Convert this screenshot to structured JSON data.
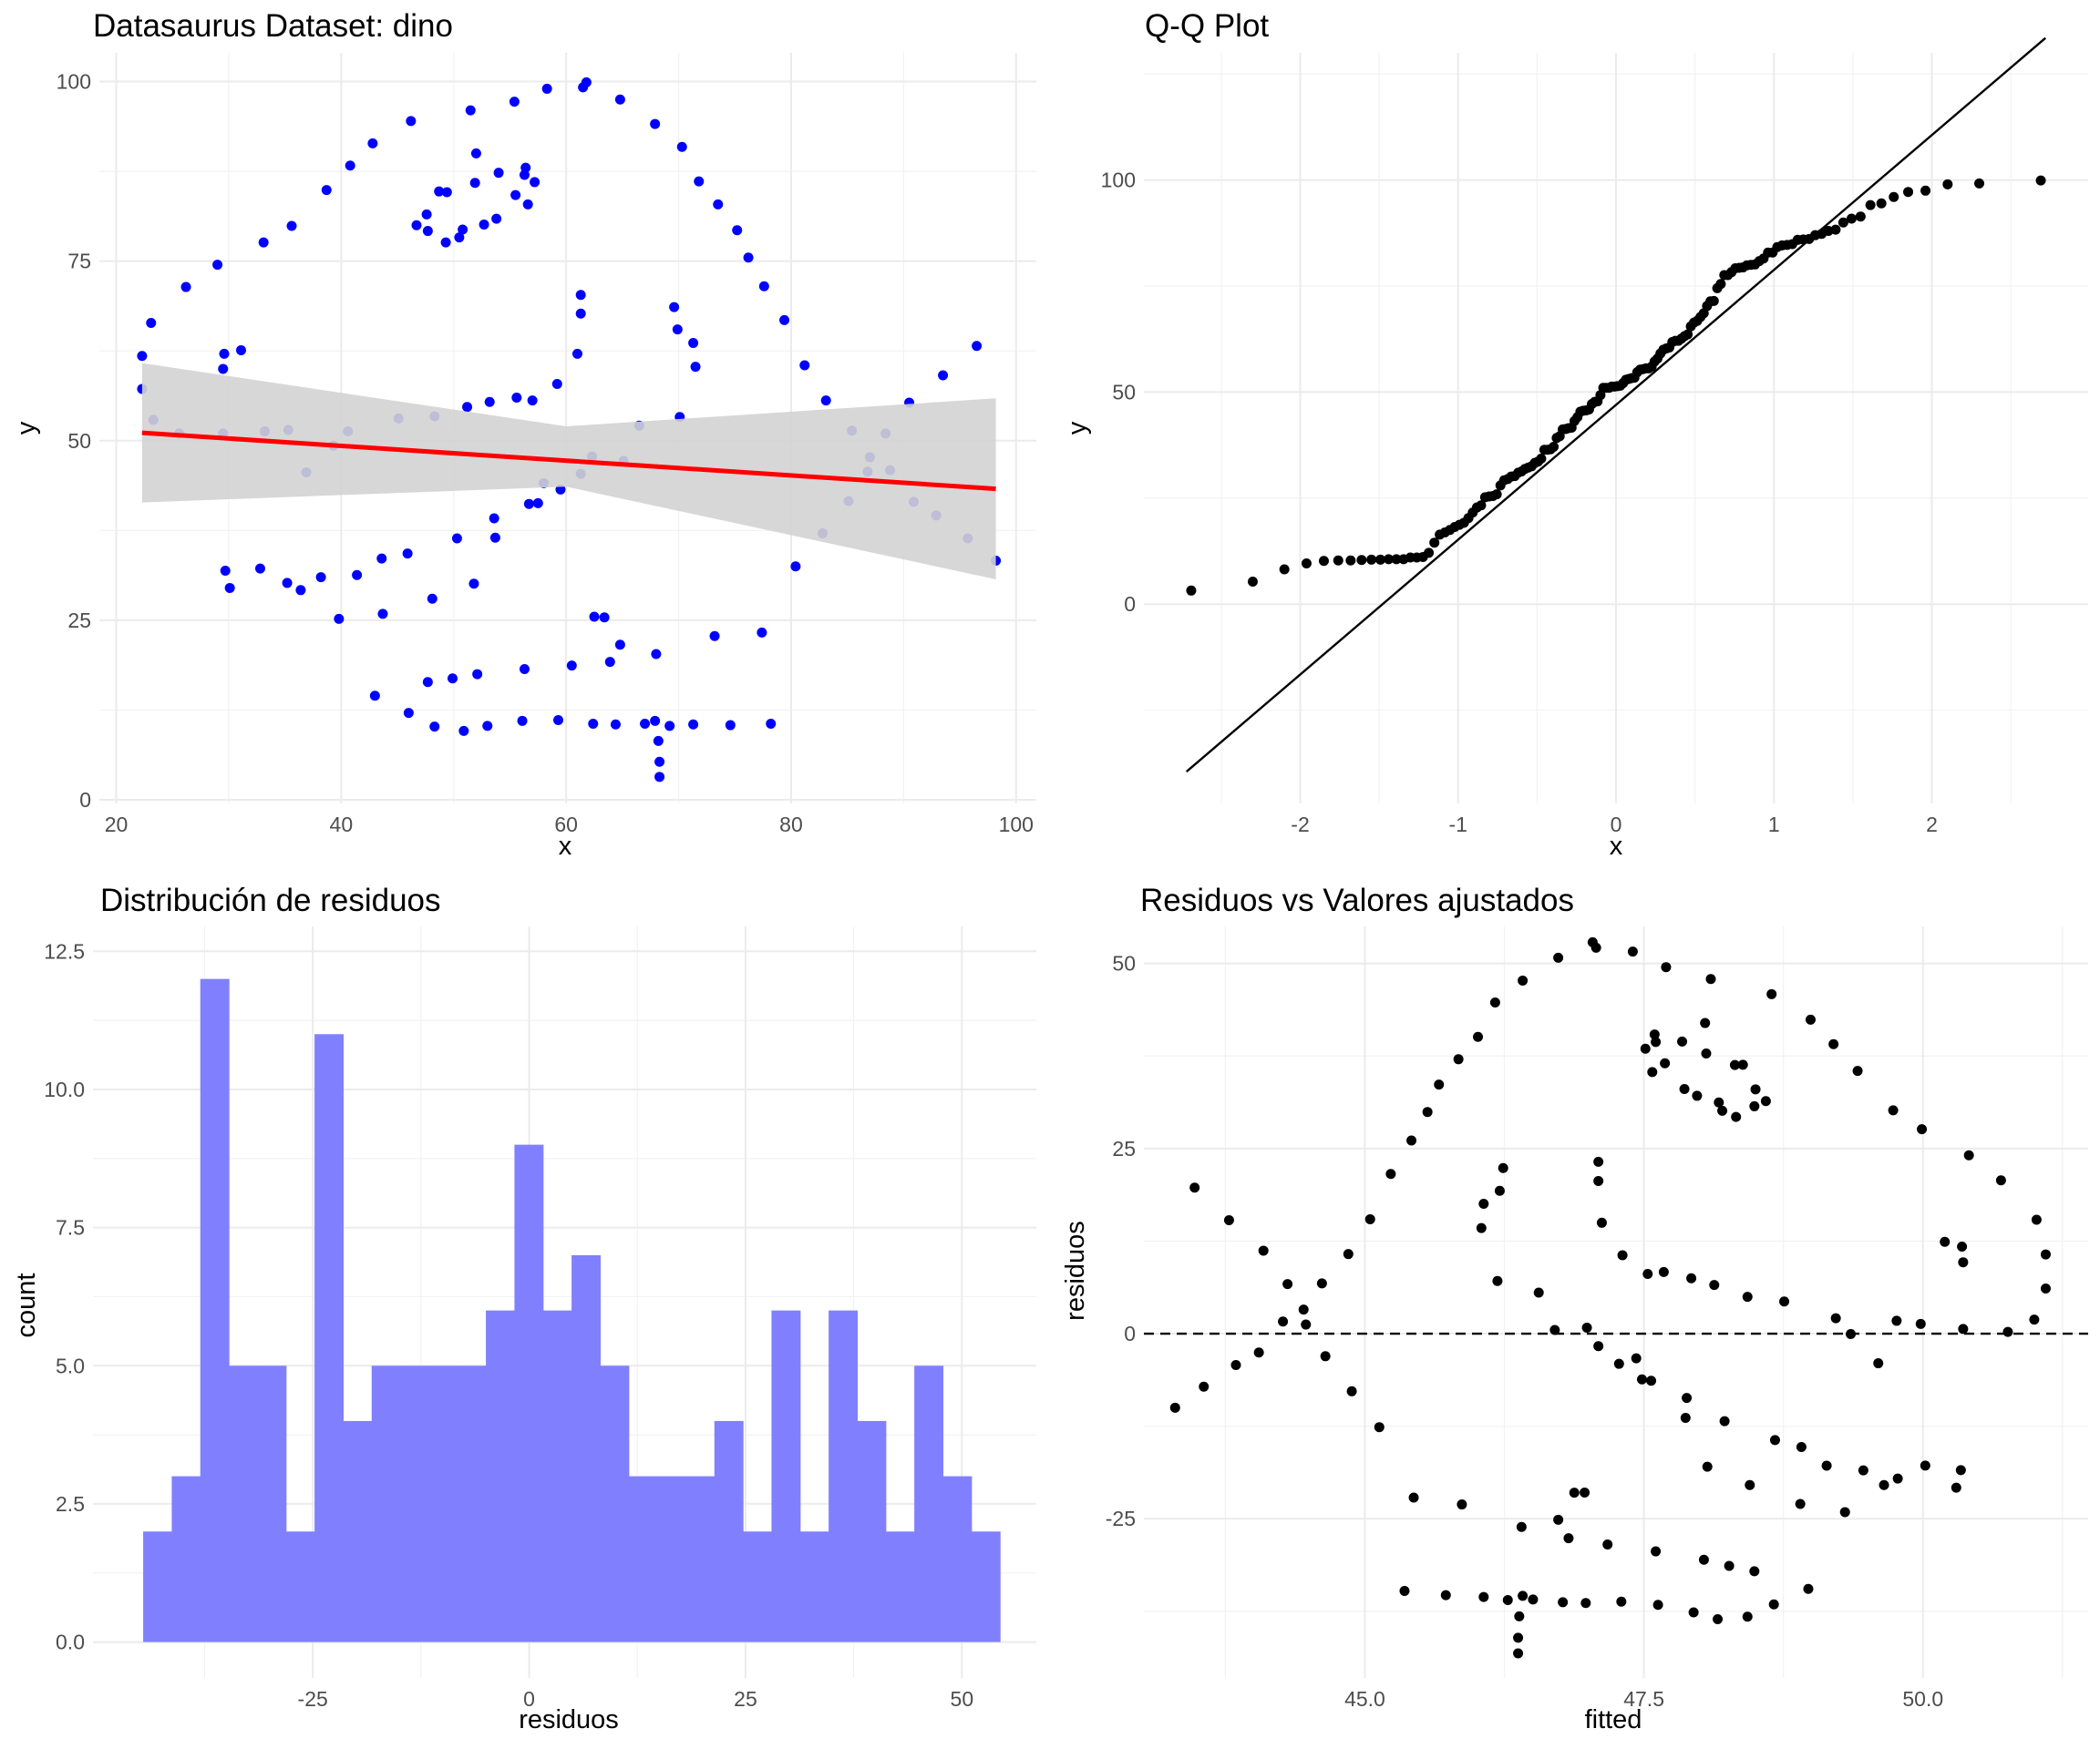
{
  "chart_data": [
    {
      "type": "scatter",
      "title": "Datasaurus Dataset: dino",
      "xlabel": "x",
      "ylabel": "y",
      "xlim": [
        18.5,
        101.8
      ],
      "ylim": [
        -0.5,
        104
      ],
      "xticks": [
        20,
        40,
        60,
        80,
        100
      ],
      "yticks": [
        0,
        25,
        50,
        75,
        100
      ],
      "grid": true,
      "point_color": "#0000ff",
      "regression": {
        "color": "#ff0000",
        "x": [
          22.3,
          98.2
        ],
        "y": [
          51.1,
          43.3
        ],
        "band_color": "#d3d3d3",
        "band": {
          "x": [
            22.3,
            60,
            98.2
          ],
          "lower": [
            41.4,
            43.6,
            30.7
          ],
          "upper": [
            60.8,
            52.0,
            55.9
          ]
        }
      },
      "points": [
        [
          55.4,
          97.2
        ],
        [
          51.5,
          96
        ],
        [
          46.2,
          94.5
        ],
        [
          42.8,
          91.4
        ],
        [
          40.8,
          88.3
        ],
        [
          38.7,
          84.9
        ],
        [
          35.6,
          79.9
        ],
        [
          33.1,
          77.6
        ],
        [
          29,
          74.5
        ],
        [
          26.2,
          71.4
        ],
        [
          23.1,
          66.4
        ],
        [
          22.3,
          61.8
        ],
        [
          22.3,
          57.2
        ],
        [
          23.3,
          52.9
        ],
        [
          25.6,
          51
        ],
        [
          29.5,
          51
        ],
        [
          29.5,
          60
        ],
        [
          29.6,
          62.1
        ],
        [
          31.1,
          62.6
        ],
        [
          33.2,
          51.3
        ],
        [
          35.3,
          51.5
        ],
        [
          36.9,
          45.6
        ],
        [
          39.3,
          49.3
        ],
        [
          40.6,
          51.3
        ],
        [
          45.1,
          53.1
        ],
        [
          48.3,
          53.4
        ],
        [
          51.2,
          54.7
        ],
        [
          53.2,
          55.4
        ],
        [
          55.6,
          56
        ],
        [
          57,
          55.6
        ],
        [
          59.2,
          57.9
        ],
        [
          61,
          62.1
        ],
        [
          61.3,
          67.7
        ],
        [
          61.3,
          70.3
        ],
        [
          69.6,
          68.6
        ],
        [
          71.3,
          63.6
        ],
        [
          71.5,
          60.3
        ],
        [
          70.1,
          53.3
        ],
        [
          65.1,
          47.2
        ],
        [
          61.3,
          45.4
        ],
        [
          58,
          44.1
        ],
        [
          57.5,
          41.3
        ],
        [
          53.6,
          39.2
        ],
        [
          50.3,
          36.4
        ],
        [
          45.9,
          34.3
        ],
        [
          43.6,
          33.6
        ],
        [
          41.4,
          31.3
        ],
        [
          38.2,
          31
        ],
        [
          35.2,
          30.2
        ],
        [
          30.1,
          29.5
        ],
        [
          29.7,
          31.9
        ],
        [
          32.8,
          32.2
        ],
        [
          36.4,
          29.2
        ],
        [
          39.8,
          25.2
        ],
        [
          43.7,
          25.9
        ],
        [
          48.1,
          28
        ],
        [
          51.8,
          30.1
        ],
        [
          53.7,
          36.5
        ],
        [
          56.7,
          41.2
        ],
        [
          59.5,
          43.2
        ],
        [
          62.3,
          47.8
        ],
        [
          66.5,
          52.1
        ],
        [
          69.9,
          65.5
        ],
        [
          61.8,
          99.9
        ],
        [
          58.3,
          99
        ],
        [
          52,
          90
        ],
        [
          48.7,
          84.7
        ],
        [
          47.6,
          81.5
        ],
        [
          50.5,
          78.3
        ],
        [
          52.7,
          80.1
        ],
        [
          55.5,
          84.2
        ],
        [
          56.3,
          87
        ],
        [
          57.2,
          86
        ],
        [
          56.6,
          82.9
        ],
        [
          53.8,
          80.9
        ],
        [
          50.8,
          79.4
        ],
        [
          49.3,
          77.6
        ],
        [
          47.7,
          79.2
        ],
        [
          46.7,
          80
        ],
        [
          49.4,
          84.6
        ],
        [
          51.9,
          85.9
        ],
        [
          54,
          87.3
        ],
        [
          56.4,
          88
        ],
        [
          63.4,
          25.4
        ],
        [
          62.5,
          25.5
        ],
        [
          64.8,
          21.6
        ],
        [
          63.9,
          19.2
        ],
        [
          60.5,
          18.7
        ],
        [
          56.3,
          18.2
        ],
        [
          52.1,
          17.5
        ],
        [
          49.9,
          16.9
        ],
        [
          47.7,
          16.4
        ],
        [
          43,
          14.5
        ],
        [
          46,
          12.1
        ],
        [
          48.3,
          10.2
        ],
        [
          50.9,
          9.6
        ],
        [
          53,
          10.3
        ],
        [
          56.1,
          11
        ],
        [
          59.3,
          11.1
        ],
        [
          62.4,
          10.6
        ],
        [
          64.4,
          10.5
        ],
        [
          67,
          10.6
        ],
        [
          69.2,
          10.3
        ],
        [
          71.3,
          10.5
        ],
        [
          74.6,
          10.4
        ],
        [
          78.2,
          10.6
        ],
        [
          68.3,
          3.2
        ],
        [
          68.3,
          5.3
        ],
        [
          68.2,
          8.2
        ],
        [
          67.9,
          11
        ],
        [
          68,
          20.3
        ],
        [
          73.2,
          22.8
        ],
        [
          77.4,
          23.3
        ],
        [
          80.4,
          32.5
        ],
        [
          82.8,
          37.1
        ],
        [
          85.1,
          41.6
        ],
        [
          86.8,
          45.7
        ],
        [
          88.4,
          51
        ],
        [
          90.5,
          55.3
        ],
        [
          93.5,
          59.1
        ],
        [
          96.5,
          63.2
        ],
        [
          98.2,
          33.3
        ],
        [
          95.7,
          36.4
        ],
        [
          92.9,
          39.6
        ],
        [
          90.9,
          41.5
        ],
        [
          88.8,
          45.9
        ],
        [
          87,
          47.7
        ],
        [
          85.4,
          51.4
        ],
        [
          83.1,
          55.6
        ],
        [
          81.2,
          60.5
        ],
        [
          79.4,
          66.8
        ],
        [
          77.6,
          71.5
        ],
        [
          76.2,
          75.5
        ],
        [
          75.2,
          79.3
        ],
        [
          73.5,
          82.9
        ],
        [
          71.8,
          86.1
        ],
        [
          70.3,
          90.9
        ],
        [
          67.9,
          94.1
        ],
        [
          64.8,
          97.5
        ],
        [
          61.5,
          99.2
        ]
      ]
    },
    {
      "type": "scatter",
      "title": "Q-Q Plot",
      "xlabel": "x",
      "ylabel": "y",
      "xlim": [
        -2.99,
        2.99
      ],
      "ylim": [
        -47,
        130
      ],
      "xticks": [
        -2,
        -1,
        0,
        1,
        2
      ],
      "yticks": [
        0,
        50,
        100
      ],
      "grid": true,
      "point_color": "#000000",
      "reference_line": {
        "x": [
          -2.72,
          2.72
        ],
        "y": [
          -39.5,
          133.5
        ],
        "color": "#000000"
      }
    },
    {
      "type": "bar",
      "title": "Distribución de residuos",
      "xlabel": "residuos",
      "ylabel": "count",
      "xlim": [
        -50.4,
        58.6
      ],
      "ylim": [
        -0.65,
        12.95
      ],
      "xticks": [
        -25,
        0,
        25,
        50
      ],
      "yticks": [
        0.0,
        2.5,
        5.0,
        7.5,
        10.0,
        12.5
      ],
      "ytick_labels": [
        "0.0",
        "2.5",
        "5.0",
        "7.5",
        "10.0",
        "12.5"
      ],
      "grid": true,
      "bar_color": "#8080ff",
      "bin_start": -44.6,
      "bin_width": 3.3,
      "values": [
        2,
        3,
        12,
        5,
        5,
        2,
        11,
        4,
        5,
        5,
        5,
        5,
        6,
        9,
        6,
        7,
        5,
        3,
        3,
        3,
        4,
        2,
        6,
        2,
        6,
        4,
        2,
        5,
        3,
        2
      ]
    },
    {
      "type": "scatter",
      "title": "Residuos vs Valores ajustados",
      "xlabel": "fitted",
      "ylabel": "residuos",
      "xlim": [
        43.02,
        51.48
      ],
      "ylim": [
        -46.5,
        55
      ],
      "xticks": [
        45.0,
        47.5,
        50.0
      ],
      "xtick_labels": [
        "45.0",
        "47.5",
        "50.0"
      ],
      "yticks": [
        -25,
        0,
        25,
        50
      ],
      "grid": true,
      "point_color": "#000000",
      "hline": {
        "y": 0,
        "dash": true,
        "color": "#000000"
      }
    }
  ]
}
